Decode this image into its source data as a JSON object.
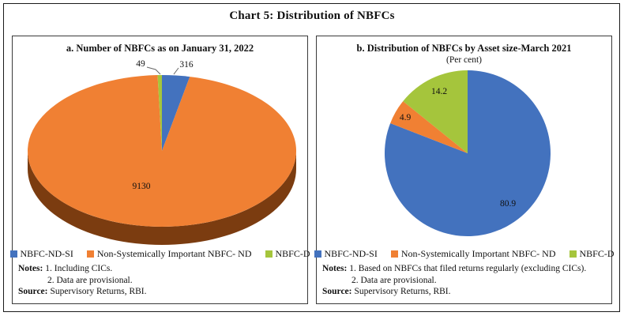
{
  "header": {
    "title": "Chart 5: Distribution of NBFCs"
  },
  "panels": {
    "left": {
      "title": "a. Number of NBFCs as on January 31, 2022",
      "notes_label": "Notes:",
      "note1": "1. Including CICs.",
      "note2": "2. Data are provisional.",
      "source_label": "Source:",
      "source_text": "Supervisory Returns, RBI."
    },
    "right": {
      "title": "b. Distribution of NBFCs by Asset size-March 2021",
      "subtitle": "(Per cent)",
      "notes_label": "Notes:",
      "note1": "1. Based on NBFCs that filed returns regularly (excluding CICs).",
      "note2": "2. Data are provisional.",
      "source_label": "Source:",
      "source_text": "Supervisory Returns, RBI."
    }
  },
  "chart_data": [
    {
      "type": "pie",
      "style": "3d",
      "title": "a. Number of NBFCs as on January 31, 2022",
      "labels": [
        "NBFC-ND-SI",
        "Non-Systemically Important NBFC- ND",
        "NBFC-D"
      ],
      "values": [
        316,
        9130,
        49
      ],
      "colors": [
        "#4372BE",
        "#F08033",
        "#A5C53C"
      ],
      "side_color": "#7B3C10",
      "start": "top",
      "direction": "clockwise",
      "legend_position": "bottom"
    },
    {
      "type": "pie",
      "style": "flat",
      "title": "b. Distribution of NBFCs by Asset size-March 2021",
      "unit": "Per cent",
      "labels": [
        "NBFC-ND-SI",
        "Non-Systemically Important NBFC- ND",
        "NBFC-D"
      ],
      "values": [
        80.9,
        4.9,
        14.2
      ],
      "colors": [
        "#4372BE",
        "#F08033",
        "#A5C53C"
      ],
      "start": "top",
      "direction": "clockwise",
      "legend_position": "bottom"
    }
  ]
}
